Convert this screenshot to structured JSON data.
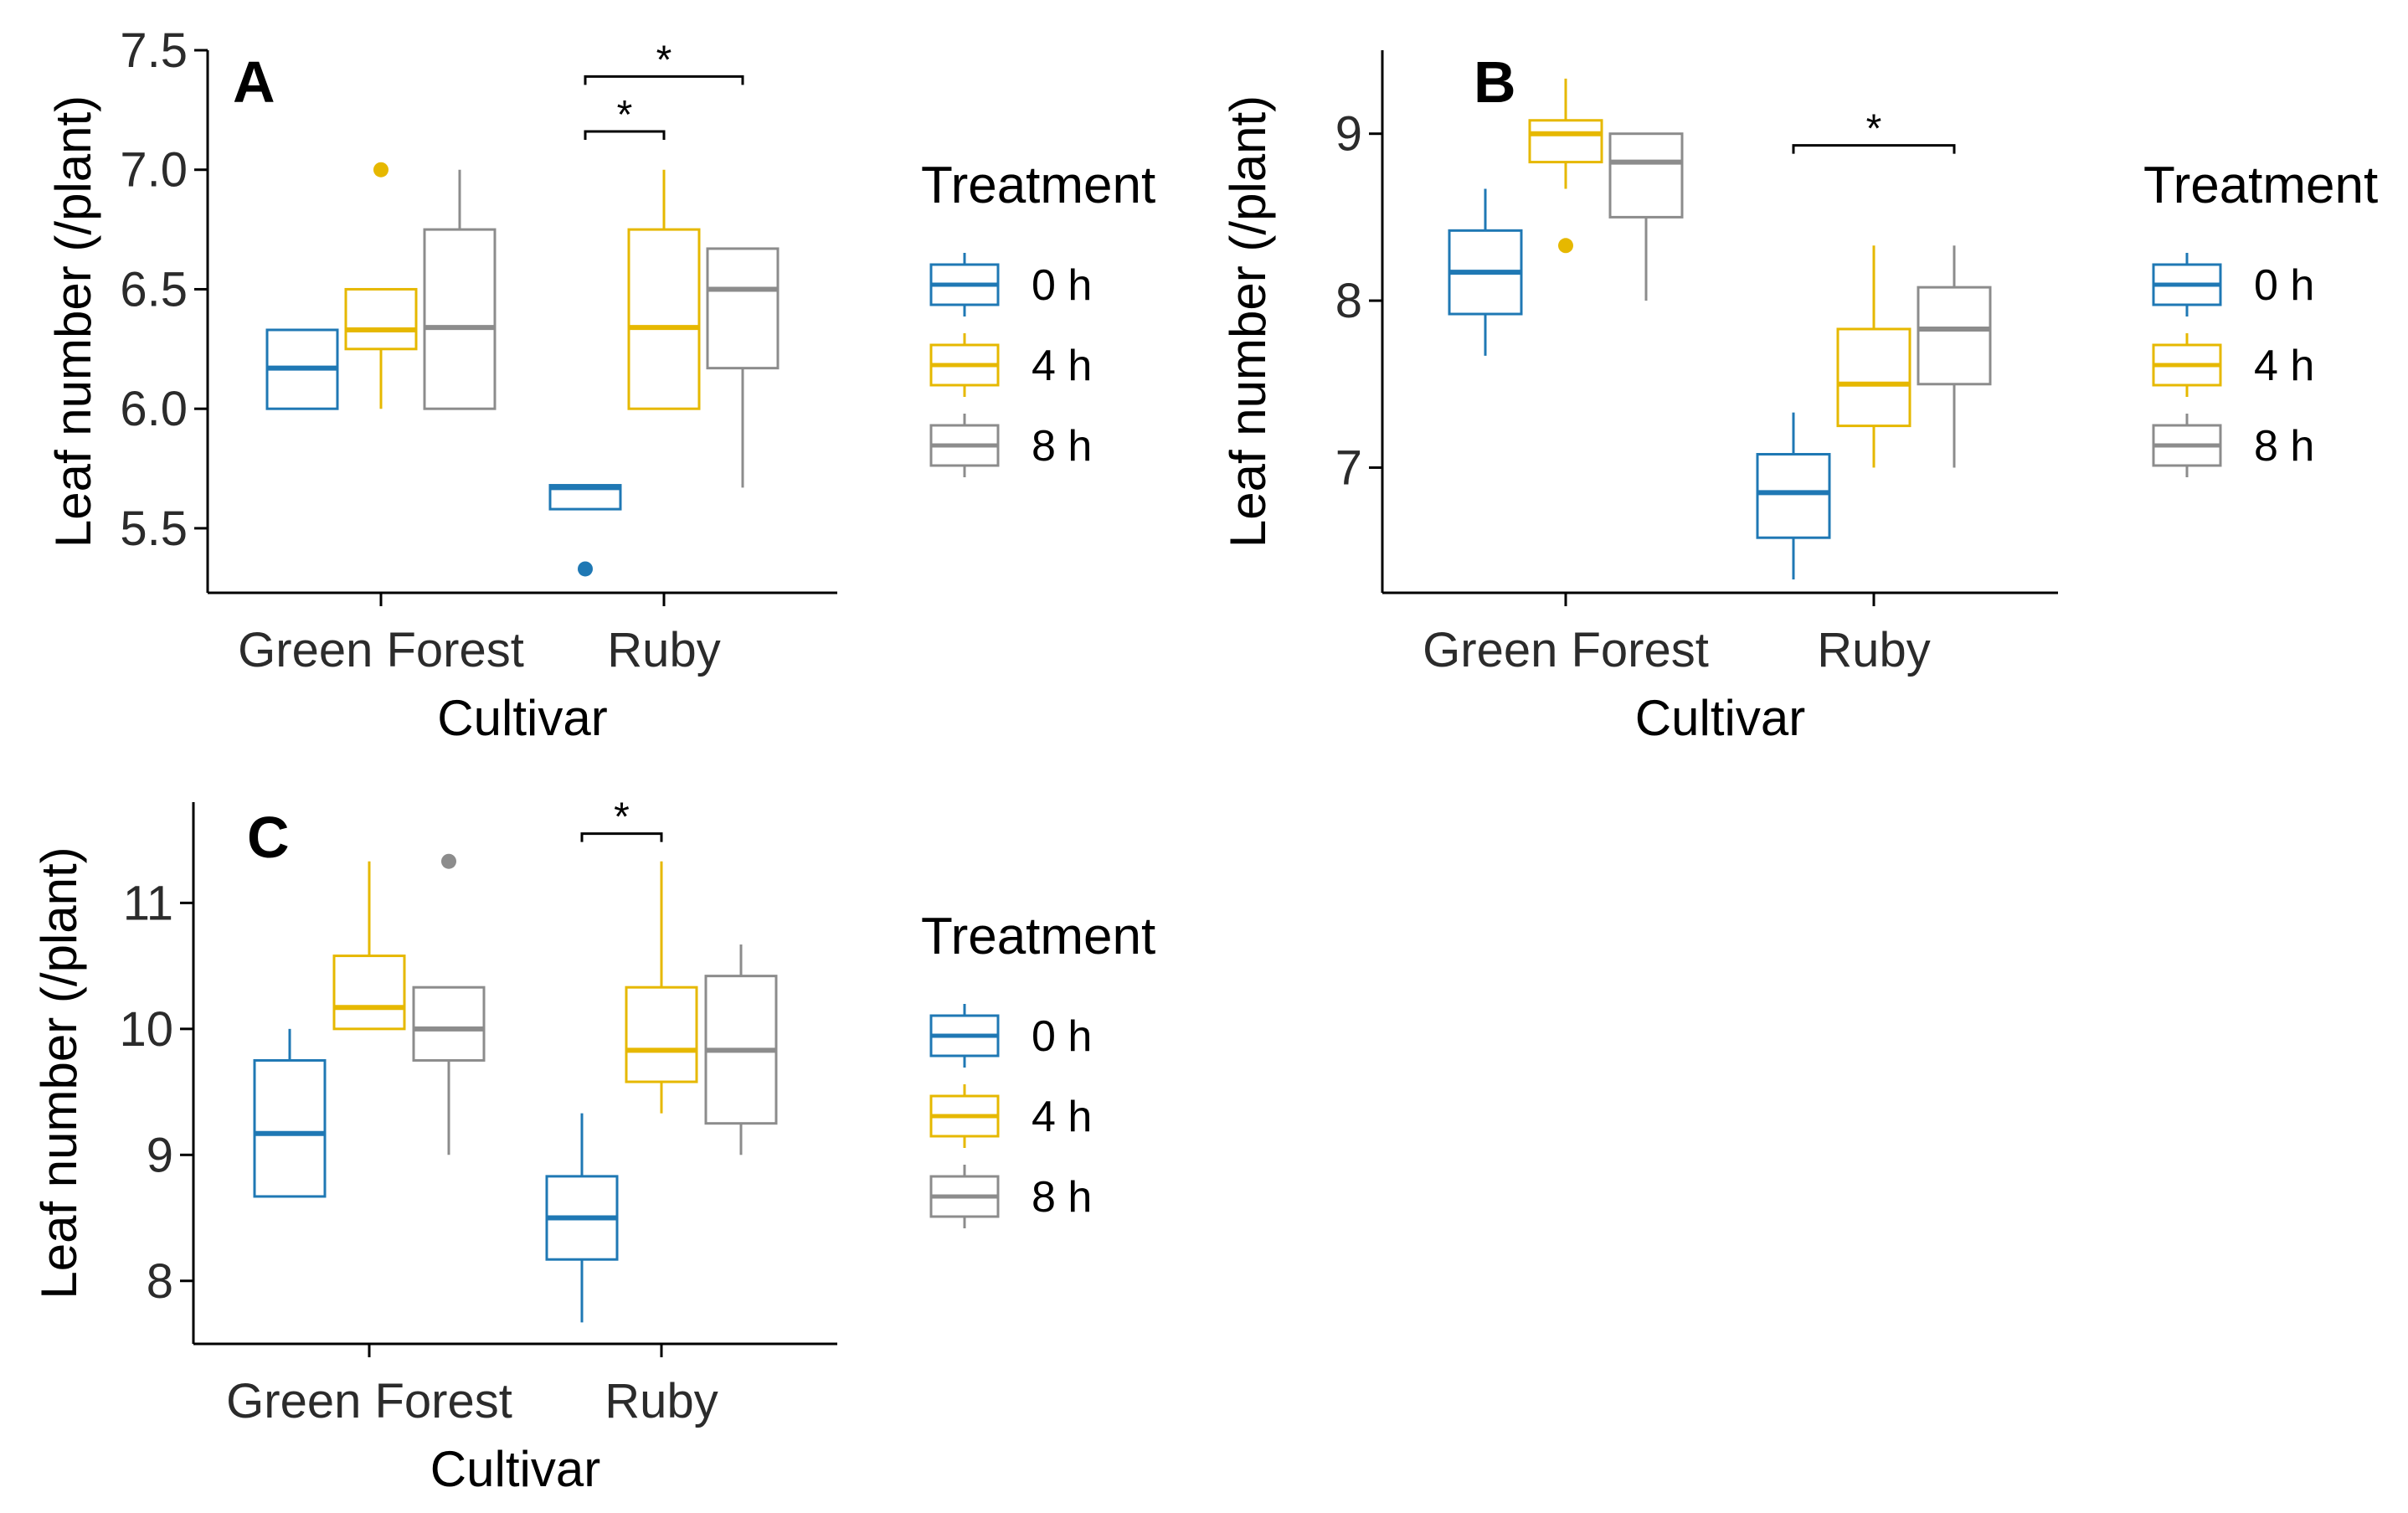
{
  "colors": {
    "0 h": "#1f78b4",
    "4 h": "#e6b800",
    "8 h": "#8c8c8c"
  },
  "chart_data": [
    {
      "type": "box",
      "panel": "A",
      "xlabel": "Cultivar",
      "ylabel": "Leaf number (/plant)",
      "categories": [
        "Green Forest",
        "Ruby"
      ],
      "legend_title": "Treatment",
      "legend_position": "right",
      "ylim": [
        5.23,
        7.5
      ],
      "yticks": [
        5.5,
        6.0,
        6.5,
        7.0,
        7.5
      ],
      "ytick_labels": [
        "5.5",
        "6.0",
        "6.5",
        "7.0",
        "7.5"
      ],
      "series": [
        {
          "name": "0 h",
          "boxes": [
            {
              "min": 6.0,
              "q1": 6.0,
              "median": 6.17,
              "q3": 6.33,
              "max": 6.33,
              "outliers": []
            },
            {
              "min": 5.58,
              "q1": 5.58,
              "median": 5.67,
              "q3": 5.68,
              "max": 5.68,
              "outliers": [
                5.33
              ]
            }
          ]
        },
        {
          "name": "4 h",
          "boxes": [
            {
              "min": 6.0,
              "q1": 6.25,
              "median": 6.33,
              "q3": 6.5,
              "max": 6.5,
              "outliers": [
                7.0
              ]
            },
            {
              "min": 6.0,
              "q1": 6.0,
              "median": 6.34,
              "q3": 6.75,
              "max": 7.0,
              "outliers": []
            }
          ]
        },
        {
          "name": "8 h",
          "boxes": [
            {
              "min": 6.0,
              "q1": 6.0,
              "median": 6.34,
              "q3": 6.75,
              "max": 7.0,
              "outliers": []
            },
            {
              "min": 5.67,
              "q1": 6.17,
              "median": 6.5,
              "q3": 6.67,
              "max": 6.67,
              "outliers": []
            }
          ]
        }
      ],
      "significance": [
        {
          "category": "Ruby",
          "from": "0 h",
          "to": "4 h",
          "y": 7.16,
          "label": "*"
        },
        {
          "category": "Ruby",
          "from": "0 h",
          "to": "8 h",
          "y": 7.39,
          "label": "*"
        }
      ]
    },
    {
      "type": "box",
      "panel": "B",
      "xlabel": "Cultivar",
      "ylabel": "Leaf number (/plant)",
      "categories": [
        "Green Forest",
        "Ruby"
      ],
      "legend_title": "Treatment",
      "legend_position": "right",
      "ylim": [
        6.25,
        9.5
      ],
      "yticks": [
        7,
        8,
        9
      ],
      "ytick_labels": [
        "7",
        "8",
        "9"
      ],
      "series": [
        {
          "name": "0 h",
          "boxes": [
            {
              "min": 7.67,
              "q1": 7.92,
              "median": 8.17,
              "q3": 8.42,
              "max": 8.67,
              "outliers": []
            },
            {
              "min": 6.33,
              "q1": 6.58,
              "median": 6.85,
              "q3": 7.08,
              "max": 7.33,
              "outliers": []
            }
          ]
        },
        {
          "name": "4 h",
          "boxes": [
            {
              "min": 8.67,
              "q1": 8.83,
              "median": 9.0,
              "q3": 9.08,
              "max": 9.33,
              "outliers": [
                8.33
              ]
            },
            {
              "min": 7.0,
              "q1": 7.25,
              "median": 7.5,
              "q3": 7.83,
              "max": 8.33,
              "outliers": []
            }
          ]
        },
        {
          "name": "8 h",
          "boxes": [
            {
              "min": 8.0,
              "q1": 8.5,
              "median": 8.83,
              "q3": 9.0,
              "max": 9.0,
              "outliers": []
            },
            {
              "min": 7.0,
              "q1": 7.5,
              "median": 7.83,
              "q3": 8.08,
              "max": 8.33,
              "outliers": []
            }
          ]
        }
      ],
      "significance": [
        {
          "category": "Ruby",
          "from": "0 h",
          "to": "8 h",
          "y": 8.93,
          "label": "*"
        }
      ]
    },
    {
      "type": "box",
      "panel": "C",
      "xlabel": "Cultivar",
      "ylabel": "Leaf number (/plant)",
      "categories": [
        "Green Forest",
        "Ruby"
      ],
      "legend_title": "Treatment",
      "legend_position": "right",
      "ylim": [
        7.5,
        11.8
      ],
      "yticks": [
        8,
        9,
        10,
        11
      ],
      "ytick_labels": [
        "8",
        "9",
        "10",
        "11"
      ],
      "series": [
        {
          "name": "0 h",
          "boxes": [
            {
              "min": 8.67,
              "q1": 8.67,
              "median": 9.17,
              "q3": 9.75,
              "max": 10.0,
              "outliers": []
            },
            {
              "min": 7.67,
              "q1": 8.17,
              "median": 8.5,
              "q3": 8.83,
              "max": 9.33,
              "outliers": []
            }
          ]
        },
        {
          "name": "4 h",
          "boxes": [
            {
              "min": 10.0,
              "q1": 10.0,
              "median": 10.17,
              "q3": 10.58,
              "max": 11.33,
              "outliers": []
            },
            {
              "min": 9.33,
              "q1": 9.58,
              "median": 9.83,
              "q3": 10.33,
              "max": 11.33,
              "outliers": []
            }
          ]
        },
        {
          "name": "8 h",
          "boxes": [
            {
              "min": 9.0,
              "q1": 9.75,
              "median": 10.0,
              "q3": 10.33,
              "max": 10.33,
              "outliers": [
                11.33
              ]
            },
            {
              "min": 9.0,
              "q1": 9.25,
              "median": 9.83,
              "q3": 10.42,
              "max": 10.67,
              "outliers": []
            }
          ]
        }
      ],
      "significance": [
        {
          "category": "Ruby",
          "from": "0 h",
          "to": "4 h",
          "y": 11.55,
          "label": "*"
        }
      ]
    }
  ]
}
